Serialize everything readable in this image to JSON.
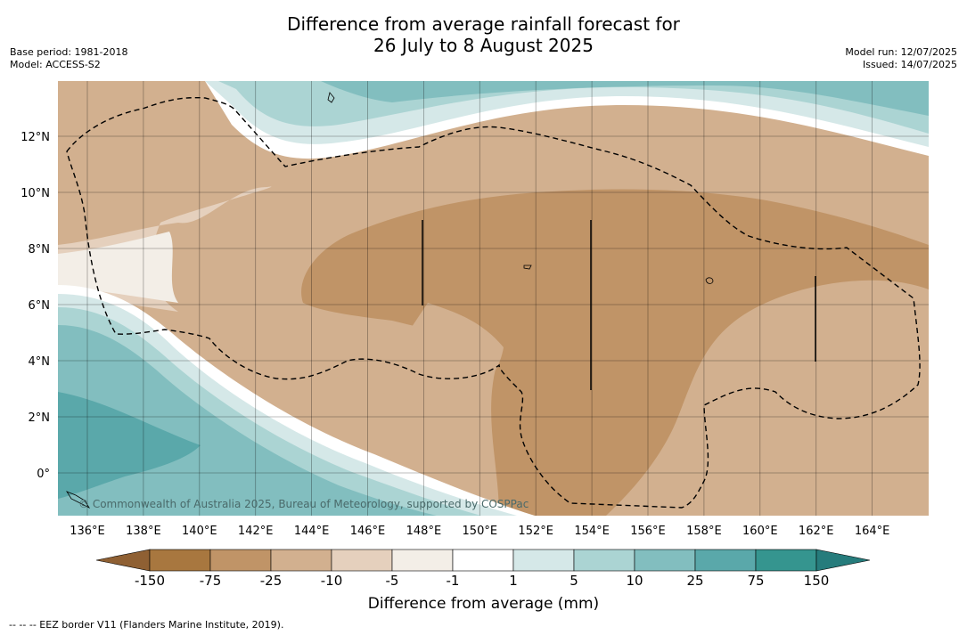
{
  "title_line1": "Difference from average rainfall forecast for",
  "title_line2": "26 July to 8 August 2025",
  "left_meta": {
    "base_period": "Base period: 1981-2018",
    "model": "Model: ACCESS-S2"
  },
  "right_meta": {
    "model_run": "Model run: 12/07/2025",
    "issued": "Issued: 14/07/2025"
  },
  "map": {
    "lon_labels": [
      "136°E",
      "138°E",
      "140°E",
      "142°E",
      "144°E",
      "146°E",
      "148°E",
      "150°E",
      "152°E",
      "154°E",
      "156°E",
      "158°E",
      "160°E",
      "162°E",
      "164°E"
    ],
    "lat_labels": [
      "12°N",
      "10°N",
      "8°N",
      "6°N",
      "4°N",
      "2°N",
      "0°"
    ],
    "copyright": "© Commonwealth of Australia 2025, Bureau of Meteorology, supported by COSPPac",
    "colors": {
      "brown_150": "#a8773f",
      "brown_75": "#c09467",
      "brown_25": "#d2b08f",
      "brown_10": "#e5d0bd",
      "brown_5": "#f3eee7",
      "white": "#ffffff",
      "teal_1": "#d5e8e8",
      "teal_5": "#abd4d3",
      "teal_10": "#82bebf",
      "teal_25": "#5aa8aa",
      "teal_75": "#35958f"
    }
  },
  "colorbar": {
    "labels": [
      "-150",
      "-75",
      "-25",
      "-10",
      "-5",
      "-1",
      "1",
      "5",
      "10",
      "25",
      "75",
      "150"
    ],
    "colors": [
      "#a8773f",
      "#c09467",
      "#d2b08f",
      "#e5d0bd",
      "#f3eee7",
      "#ffffff",
      "#d5e8e8",
      "#abd4d3",
      "#82bebf",
      "#5aa8aa",
      "#35958f"
    ],
    "under_color": "#8f6033",
    "over_color": "#267c7c",
    "title": "Difference from average (mm)"
  },
  "footnote": "--  --  -- EEZ border V11 (Flanders Marine Institute, 2019)."
}
